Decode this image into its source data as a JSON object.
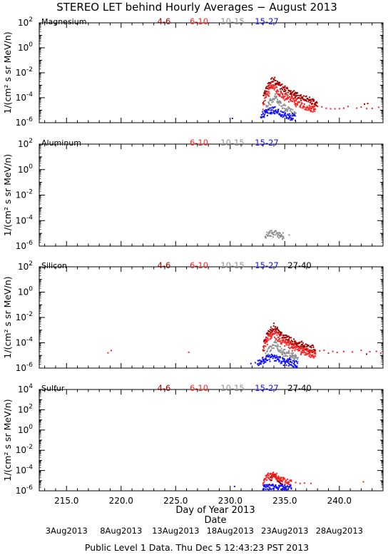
{
  "title": "STEREO LET behind Hourly Averages − August 2013",
  "x_axis": {
    "label": "Day of Year 2013",
    "date_label": "Date",
    "xlim": [
      212.5,
      244.0
    ],
    "ticks": [
      "215.0",
      "220.0",
      "225.0",
      "230.0",
      "235.0",
      "240.0"
    ],
    "tick_values": [
      215,
      220,
      225,
      230,
      235,
      240
    ],
    "date_ticks": [
      "3Aug2013",
      "8Aug2013",
      "13Aug2013",
      "18Aug2013",
      "23Aug2013",
      "28Aug2013"
    ],
    "date_tick_values": [
      215,
      220,
      225,
      230,
      235,
      240
    ]
  },
  "footer": "Public Level 1 Data. Thu Dec  5 12:43:23 PST 2013",
  "colors": {
    "4-6": "#a00000",
    "6-10": "#ff2020",
    "10-15": "#909090",
    "15-27": "#1010ff",
    "27-40": "#000000"
  },
  "chart_data": [
    {
      "type": "scatter",
      "element": "Magnesium",
      "ylabel": "1/(cm² s sr MeV/n)",
      "y_scale": "log",
      "ylim_exp": [
        -6,
        2
      ],
      "yticks": [
        {
          "b": "10",
          "e": "2"
        },
        {
          "b": "10",
          "e": "0"
        },
        {
          "b": "10",
          "e": "-2"
        },
        {
          "b": "10",
          "e": "-4"
        },
        {
          "b": "10",
          "e": "-6"
        }
      ],
      "legend": [
        "4-6",
        "6-10",
        "10-15",
        "15-27"
      ],
      "series": [
        {
          "name": "4-6",
          "shape": "event",
          "quiet_days": [
            242.3,
            242.6
          ],
          "quiet_exp": -4.5,
          "onset": 233.0,
          "peak_day": 234.0,
          "peak_exp": -2.4,
          "base_exp": -4.5,
          "decay_end": 238.0
        },
        {
          "name": "6-10",
          "shape": "event",
          "quiet_days": [
            236.8,
            237.2,
            237.6,
            238.0,
            238.4,
            238.8,
            239.2,
            239.6,
            240.0,
            240.4,
            240.8,
            241.6,
            242.0,
            242.5,
            243.0,
            243.6
          ],
          "quiet_exp": -4.8,
          "onset": 233.0,
          "peak_day": 234.0,
          "peak_exp": -3.0,
          "base_exp": -5.0,
          "decay_end": 237.8
        },
        {
          "name": "10-15",
          "shape": "event",
          "quiet_days": [],
          "quiet_exp": -5.0,
          "onset": 233.2,
          "peak_day": 234.2,
          "peak_exp": -4.0,
          "base_exp": -5.3,
          "decay_end": 236.0
        },
        {
          "name": "15-27",
          "shape": "event",
          "quiet_days": [
            230.2
          ],
          "quiet_exp": -5.6,
          "onset": 232.8,
          "peak_day": 234.0,
          "peak_exp": -4.9,
          "base_exp": -5.6,
          "decay_end": 236.0
        }
      ]
    },
    {
      "type": "scatter",
      "element": "Aluminum",
      "ylabel": "1/(cm² s sr MeV/n)",
      "y_scale": "log",
      "ylim_exp": [
        -6,
        2
      ],
      "yticks": [
        {
          "b": "10",
          "e": "2"
        },
        {
          "b": "10",
          "e": "0"
        },
        {
          "b": "10",
          "e": "-2"
        },
        {
          "b": "10",
          "e": "-4"
        },
        {
          "b": "10",
          "e": "-6"
        }
      ],
      "legend": [
        "6-10",
        "10-15",
        "15-27"
      ],
      "series": [
        {
          "name": "10-15",
          "shape": "event",
          "quiet_days": [
            235.4
          ],
          "quiet_exp": -5.2,
          "onset": 233.2,
          "peak_day": 234.2,
          "peak_exp": -4.9,
          "base_exp": -5.3,
          "decay_end": 234.9
        }
      ]
    },
    {
      "type": "scatter",
      "element": "Silicon",
      "ylabel": "1/(cm² s sr MeV/n)",
      "y_scale": "log",
      "ylim_exp": [
        -6,
        2
      ],
      "yticks": [
        {
          "b": "10",
          "e": "2"
        },
        {
          "b": "10",
          "e": "0"
        },
        {
          "b": "10",
          "e": "-2"
        },
        {
          "b": "10",
          "e": "-4"
        },
        {
          "b": "10",
          "e": "-6"
        }
      ],
      "legend": [
        "4-6",
        "6-10",
        "10-15",
        "15-27",
        "27-40"
      ],
      "series": [
        {
          "name": "4-6",
          "shape": "event",
          "quiet_days": [
            242.5
          ],
          "quiet_exp": -4.8,
          "onset": 233.0,
          "peak_day": 234.0,
          "peak_exp": -2.7,
          "base_exp": -4.6,
          "decay_end": 237.8
        },
        {
          "name": "6-10",
          "shape": "event",
          "quiet_days": [
            218.8,
            219.1,
            226.2,
            236.6,
            237.0,
            237.4,
            237.8,
            238.2,
            238.6,
            239.0,
            239.4,
            239.8,
            240.4,
            241.2,
            242.0,
            242.8,
            243.4,
            243.8
          ],
          "quiet_exp": -4.7,
          "onset": 233.0,
          "peak_day": 234.0,
          "peak_exp": -3.2,
          "base_exp": -5.0,
          "decay_end": 237.8
        },
        {
          "name": "10-15",
          "shape": "event",
          "quiet_days": [],
          "quiet_exp": -5.0,
          "onset": 233.2,
          "peak_day": 234.2,
          "peak_exp": -4.1,
          "base_exp": -5.3,
          "decay_end": 236.2
        },
        {
          "name": "15-27",
          "shape": "event",
          "quiet_days": [
            231.9,
            232.3
          ],
          "quiet_exp": -5.6,
          "onset": 232.5,
          "peak_day": 234.0,
          "peak_exp": -5.1,
          "base_exp": -5.7,
          "decay_end": 236.2
        },
        {
          "name": "27-40",
          "shape": "event",
          "quiet_days": [],
          "quiet_exp": -5.5,
          "onset": 235.5,
          "peak_day": 235.5,
          "peak_exp": -5.5,
          "base_exp": -5.5,
          "decay_end": 235.5
        }
      ]
    },
    {
      "type": "scatter",
      "element": "Sulfur",
      "ylabel": "1/(cm² s sr MeV/n)",
      "y_scale": "log",
      "ylim_exp": [
        -6,
        4
      ],
      "yticks": [
        {
          "b": "10",
          "e": "4"
        },
        {
          "b": "10",
          "e": "2"
        },
        {
          "b": "10",
          "e": "0"
        },
        {
          "b": "10",
          "e": "-2"
        },
        {
          "b": "10",
          "e": "-4"
        },
        {
          "b": "10",
          "e": "-6"
        }
      ],
      "legend": [
        "4-6",
        "6-10",
        "10-15",
        "15-27",
        "27-40"
      ],
      "series": [
        {
          "name": "4-6",
          "shape": "event",
          "quiet_days": [],
          "quiet_exp": -5.2,
          "onset": 233.6,
          "peak_day": 234.1,
          "peak_exp": -4.4,
          "base_exp": -5.2,
          "decay_end": 234.8
        },
        {
          "name": "6-10",
          "shape": "event",
          "quiet_days": [
            236.0,
            236.4,
            236.8,
            237.4,
            242.2
          ],
          "quiet_exp": -5.2,
          "onset": 233.0,
          "peak_day": 234.0,
          "peak_exp": -4.3,
          "base_exp": -5.2,
          "decay_end": 235.6
        },
        {
          "name": "15-27",
          "shape": "event",
          "quiet_days": [
            230.4
          ],
          "quiet_exp": -5.6,
          "onset": 233.0,
          "peak_day": 234.0,
          "peak_exp": -5.6,
          "base_exp": -5.7,
          "decay_end": 235.6
        }
      ]
    }
  ]
}
